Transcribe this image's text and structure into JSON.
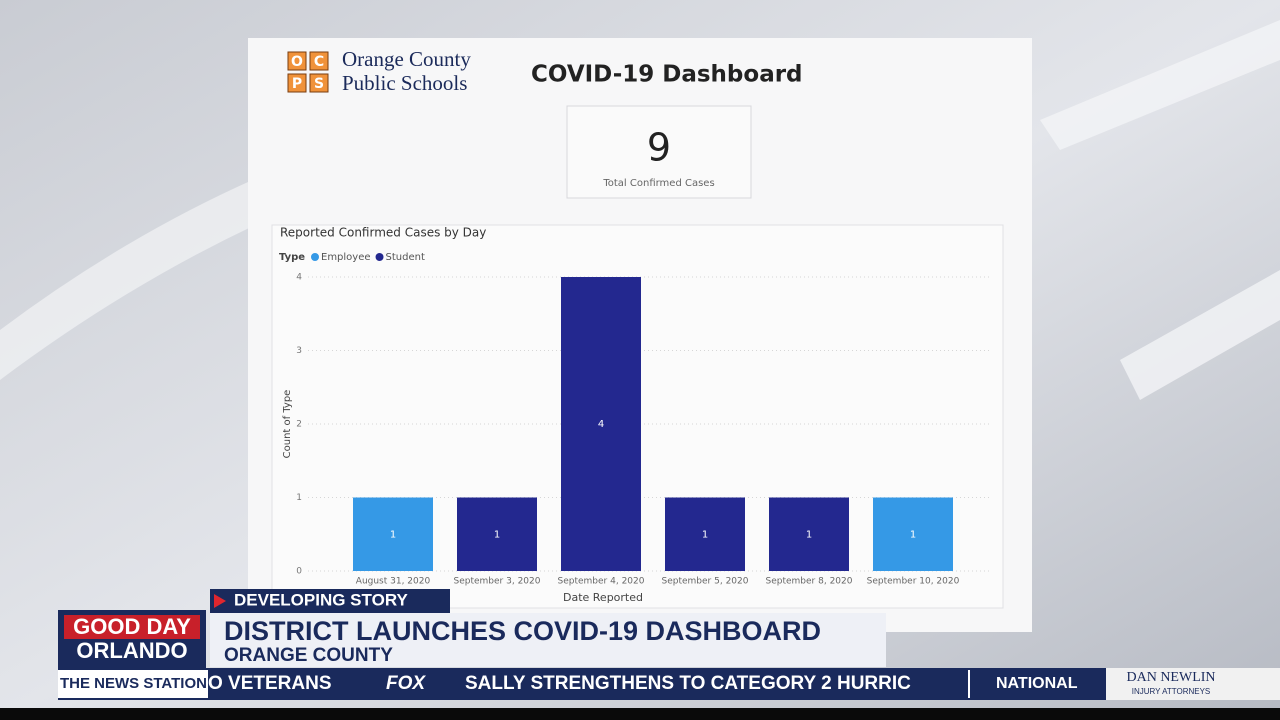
{
  "logo": {
    "letters": [
      "O",
      "C",
      "P",
      "S"
    ],
    "line1": "Orange County",
    "line2": "Public Schools"
  },
  "dashboard_title": "COVID-19 Dashboard",
  "card": {
    "value": 9,
    "label": "Total Confirmed Cases"
  },
  "chart_data": {
    "type": "bar",
    "stacked": true,
    "title": "Reported Confirmed Cases by Day",
    "legend_title": "Type",
    "legend": "top-left",
    "categories": [
      "August 31, 2020",
      "September 3, 2020",
      "September 4, 2020",
      "September 5, 2020",
      "September 8, 2020",
      "September 10, 2020"
    ],
    "series": [
      {
        "name": "Employee",
        "color": "#3599e6",
        "values": [
          1,
          null,
          null,
          null,
          null,
          1
        ]
      },
      {
        "name": "Student",
        "color": "#23288f",
        "values": [
          null,
          1,
          4,
          1,
          1,
          null
        ]
      }
    ],
    "xlabel": "Date Reported",
    "ylabel": "Count of Type",
    "ylim": [
      0,
      4
    ],
    "yticks": [
      0,
      1,
      2,
      3,
      4
    ],
    "grid": true
  },
  "broadcast": {
    "kicker": "DEVELOPING STORY",
    "headline": "DISTRICT LAUNCHES COVID-19 DASHBOARD",
    "subhead": "ORANGE COUNTY",
    "brand1": "GOOD DAY",
    "brand2": "ORLANDO",
    "station": "THE NEWS STATION",
    "ticker1": "O VETERANS",
    "network": "FOX",
    "ticker2": "SALLY STRENGTHENS TO CATEGORY 2 HURRIC",
    "section": "NATIONAL",
    "sponsor1": "DAN NEWLIN",
    "sponsor2": "INJURY ATTORNEYS"
  }
}
